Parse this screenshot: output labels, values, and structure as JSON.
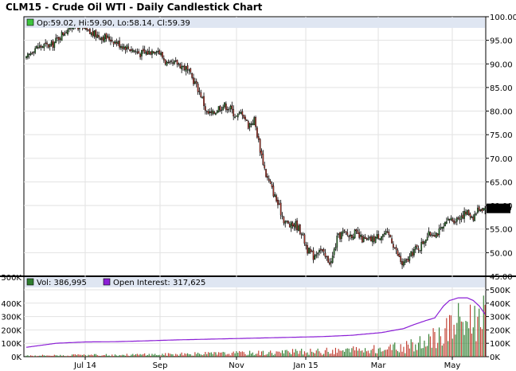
{
  "chart_data": [
    {
      "type": "candlestick",
      "title": "CLM15 - Crude Oil WTI - Daily Candlestick Chart",
      "legend": {
        "ohlc_label": "Op:59.02, Hi:59.90, Lo:58.14, Cl:59.39"
      },
      "last_price_label": "59.39",
      "ylim": [
        45,
        100
      ],
      "y_ticks": [
        "100.00",
        "95.00",
        "90.00",
        "85.00",
        "80.00",
        "75.00",
        "70.00",
        "65.00",
        "60.00",
        "55.00",
        "50.00",
        "45.00"
      ],
      "x_ticks": [
        "Jul 14",
        "Sep",
        "Nov",
        "Jan 15",
        "Mar",
        "May"
      ],
      "grid": true,
      "close_path": [
        [
          0,
          91.0
        ],
        [
          5,
          93.3
        ],
        [
          12,
          93.9
        ],
        [
          17,
          93.9
        ],
        [
          22,
          95.6
        ],
        [
          27,
          97.2
        ],
        [
          32,
          98.4
        ],
        [
          37,
          97.8
        ],
        [
          42,
          96.6
        ],
        [
          50,
          95.9
        ],
        [
          57,
          95.3
        ],
        [
          63,
          94.2
        ],
        [
          70,
          93.3
        ],
        [
          77,
          92.2
        ],
        [
          82,
          92.4
        ],
        [
          88,
          93.3
        ],
        [
          92,
          91.5
        ],
        [
          96,
          89.6
        ],
        [
          102,
          90.2
        ],
        [
          108,
          89.0
        ],
        [
          114,
          86.0
        ],
        [
          118,
          83.5
        ],
        [
          122,
          79.5
        ],
        [
          126,
          79.4
        ],
        [
          130,
          80.8
        ],
        [
          134,
          81.2
        ],
        [
          138,
          80.5
        ],
        [
          142,
          78.8
        ],
        [
          146,
          79.8
        ],
        [
          150,
          77.0
        ],
        [
          154,
          78.2
        ],
        [
          158,
          72.0
        ],
        [
          162,
          66.5
        ],
        [
          166,
          63.5
        ],
        [
          170,
          60.3
        ],
        [
          174,
          57.0
        ],
        [
          178,
          55.7
        ],
        [
          182,
          56.0
        ],
        [
          186,
          54.3
        ],
        [
          190,
          50.6
        ],
        [
          194,
          49.2
        ],
        [
          198,
          51.0
        ],
        [
          202,
          49.0
        ],
        [
          206,
          47.9
        ],
        [
          210,
          52.9
        ],
        [
          214,
          54.3
        ],
        [
          218,
          53.6
        ],
        [
          222,
          54.2
        ],
        [
          226,
          53.0
        ],
        [
          230,
          52.5
        ],
        [
          234,
          52.8
        ],
        [
          238,
          53.6
        ],
        [
          242,
          54.0
        ],
        [
          246,
          53.4
        ],
        [
          250,
          50.2
        ],
        [
          254,
          47.5
        ],
        [
          258,
          48.4
        ],
        [
          262,
          50.6
        ],
        [
          266,
          51.2
        ],
        [
          270,
          53.3
        ],
        [
          274,
          54.2
        ],
        [
          278,
          54.2
        ],
        [
          282,
          55.3
        ],
        [
          286,
          57.1
        ],
        [
          290,
          57.0
        ],
        [
          294,
          57.9
        ],
        [
          298,
          58.5
        ],
        [
          302,
          57.6
        ],
        [
          306,
          59.5
        ],
        [
          310,
          59.4
        ]
      ],
      "last_index": 310
    },
    {
      "type": "bar",
      "legend": [
        {
          "label": "Vol: 386,995",
          "color": "#2e7d2e"
        },
        {
          "label": "Open Interest: 317,625",
          "color": "#8b1fd6"
        }
      ],
      "ylim": [
        0,
        500000
      ],
      "y_ticks_right": [
        "500K",
        "400K",
        "300K",
        "200K",
        "100K",
        "0K"
      ],
      "y_ticks_left": [
        "500K",
        "400K",
        "300K",
        "200K",
        "100K",
        "0K"
      ],
      "volume_envelope": [
        [
          0,
          12000
        ],
        [
          60,
          18000
        ],
        [
          100,
          25000
        ],
        [
          140,
          35000
        ],
        [
          170,
          45000
        ],
        [
          200,
          55000
        ],
        [
          230,
          70000
        ],
        [
          255,
          95000
        ],
        [
          270,
          140000
        ],
        [
          280,
          230000
        ],
        [
          288,
          330000
        ],
        [
          296,
          380000
        ],
        [
          302,
          400000
        ],
        [
          306,
          395000
        ],
        [
          310,
          387000
        ]
      ],
      "open_interest": [
        [
          0,
          70000
        ],
        [
          20,
          100000
        ],
        [
          40,
          110000
        ],
        [
          60,
          112000
        ],
        [
          80,
          118000
        ],
        [
          100,
          125000
        ],
        [
          120,
          130000
        ],
        [
          140,
          135000
        ],
        [
          160,
          140000
        ],
        [
          180,
          145000
        ],
        [
          200,
          150000
        ],
        [
          220,
          160000
        ],
        [
          240,
          180000
        ],
        [
          255,
          210000
        ],
        [
          262,
          240000
        ],
        [
          270,
          270000
        ],
        [
          276,
          290000
        ],
        [
          282,
          380000
        ],
        [
          286,
          420000
        ],
        [
          292,
          440000
        ],
        [
          298,
          440000
        ],
        [
          302,
          420000
        ],
        [
          306,
          380000
        ],
        [
          310,
          318000
        ]
      ]
    }
  ],
  "colors": {
    "up_candle": "#2e7d2e",
    "down_candle": "#c0392b",
    "candle_outline": "#000000",
    "legend_bg": "#dfe6f2",
    "grid": "#e2e2e2",
    "price_tag_bg": "#000000",
    "price_tag_fg": "#ffffff",
    "open_interest": "#8b1fd6"
  }
}
